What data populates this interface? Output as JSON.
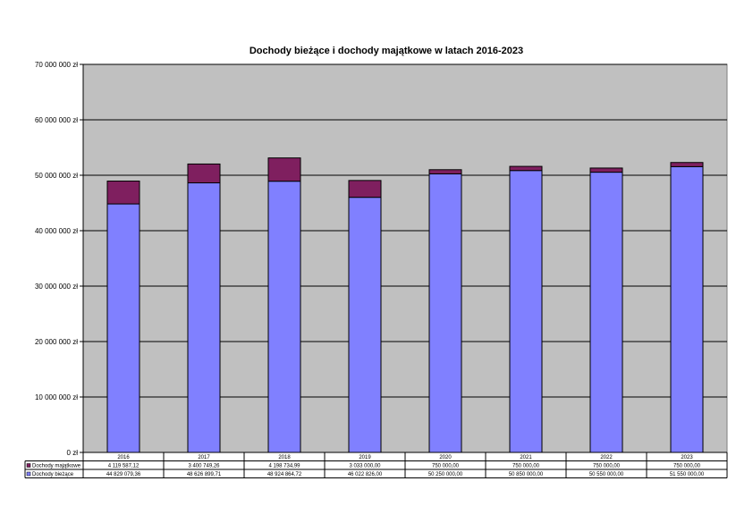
{
  "chart_data": {
    "type": "bar",
    "stacked": true,
    "title": "Dochody bieżące i dochody majątkowe w latach 2016-2023",
    "xlabel": "",
    "ylabel": "",
    "categories": [
      "2016",
      "2017",
      "2018",
      "2019",
      "2020",
      "2021",
      "2022",
      "2023"
    ],
    "ylim": [
      0,
      70000000
    ],
    "y_ticks": [
      0,
      10000000,
      20000000,
      30000000,
      40000000,
      50000000,
      60000000,
      70000000
    ],
    "y_tick_labels": [
      "0 zł",
      "10 000 000 zł",
      "20 000 000 zł",
      "30 000 000 zł",
      "40 000 000 zł",
      "50 000 000 zł",
      "60 000 000 zł",
      "70 000 000 zł"
    ],
    "grid": true,
    "plot_background": "#c0c0c0",
    "data_table": true,
    "series": [
      {
        "name": "Dochody bieżące",
        "color": "#8080ff",
        "values": [
          44829079.36,
          48626899.71,
          48924864.72,
          46022826.0,
          50250000.0,
          50850000.0,
          50550000.0,
          51550000.0
        ],
        "labels": [
          "44 829 079,36",
          "48 626 899,71",
          "48 924 864,72",
          "46 022 826,00",
          "50 250 000,00",
          "50 850 000,00",
          "50 550 000,00",
          "51 550 000,00"
        ]
      },
      {
        "name": "Dochody majątkowe",
        "color": "#7f1f5f",
        "values": [
          4119587.12,
          3400749.26,
          4198734.99,
          3033000.0,
          750000.0,
          750000.0,
          750000.0,
          750000.0
        ],
        "labels": [
          "4 119 587,12",
          "3 400 749,26",
          "4 198 734,99",
          "3 033 000,00",
          "750 000,00",
          "750 000,00",
          "750 000,00",
          "750 000,00"
        ]
      }
    ]
  }
}
